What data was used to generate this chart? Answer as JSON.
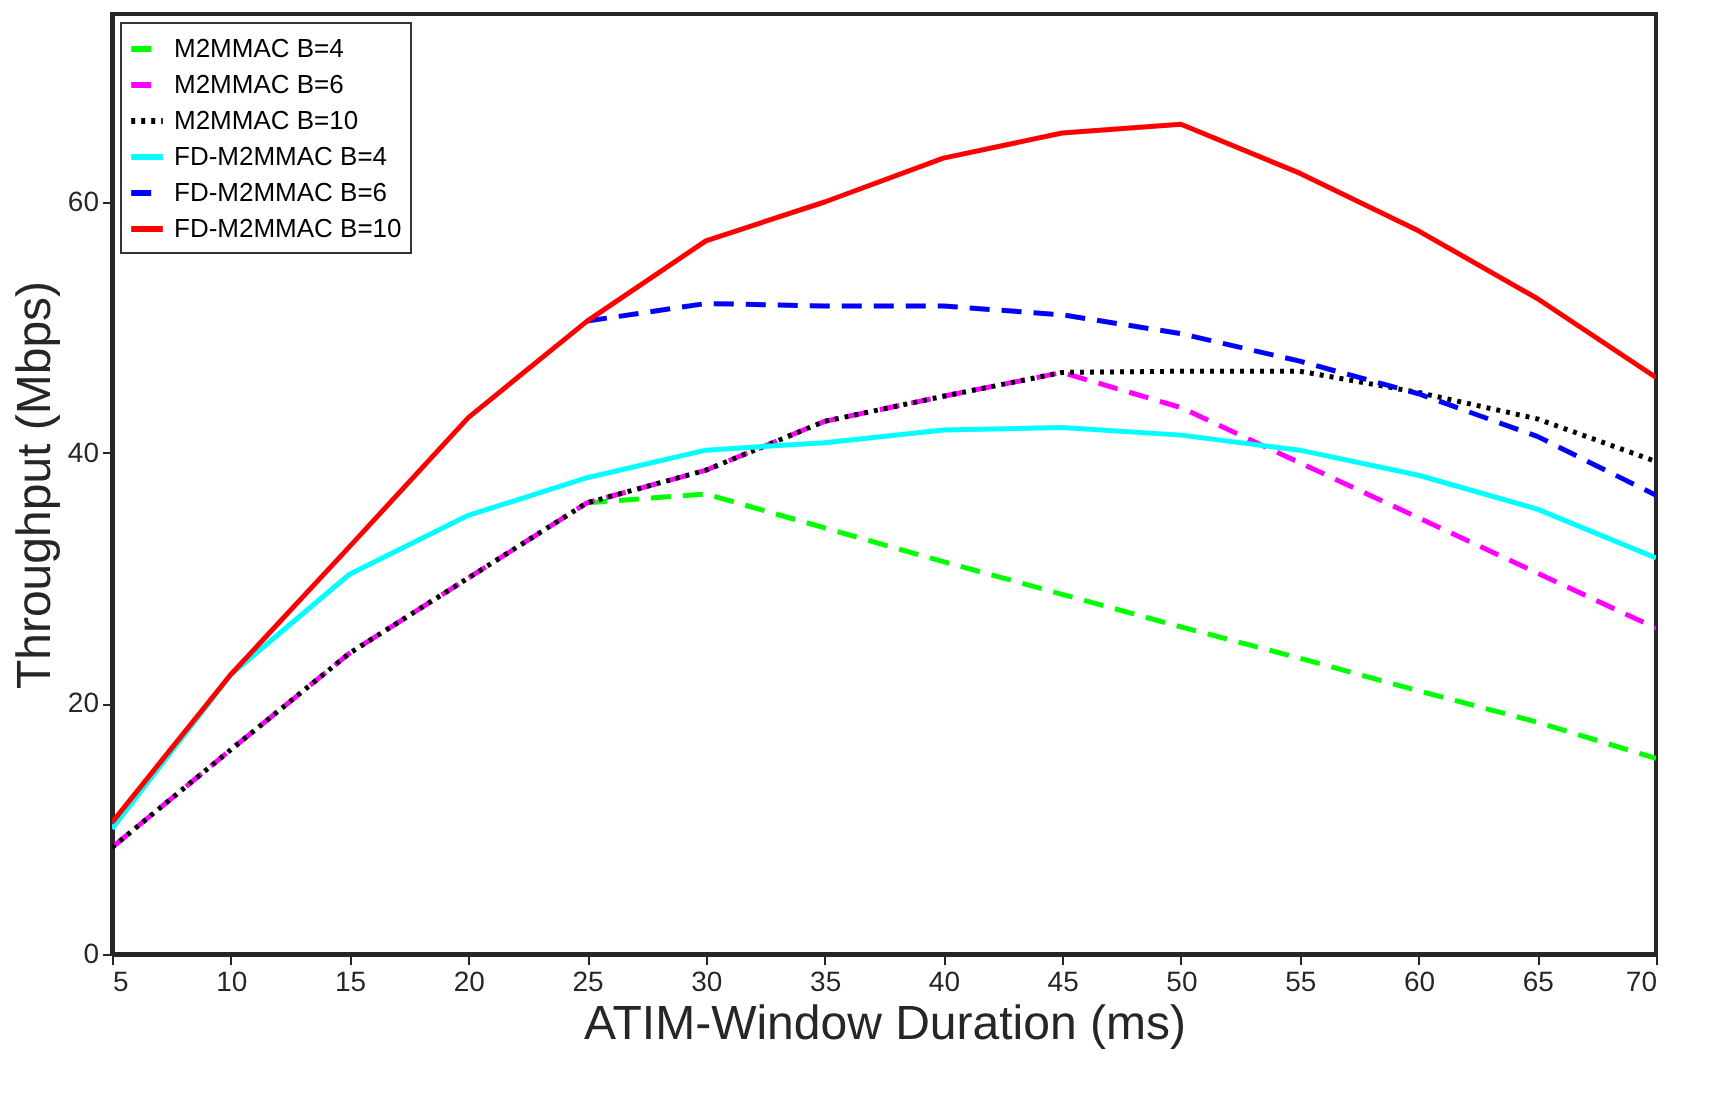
{
  "chart_data": {
    "type": "line",
    "xlabel": "ATIM-Window Duration (ms)",
    "ylabel": "Throughput (Mbps)",
    "x": [
      5,
      10,
      15,
      20,
      25,
      30,
      35,
      40,
      45,
      50,
      55,
      60,
      65,
      70
    ],
    "xlim": [
      5,
      70
    ],
    "xticks": [
      5,
      10,
      15,
      20,
      25,
      30,
      35,
      40,
      45,
      50,
      55,
      60,
      65,
      70
    ],
    "ylim": [
      0,
      75
    ],
    "yticks": [
      0,
      20,
      40,
      60
    ],
    "grid": false,
    "legend": "top left",
    "marker": "none",
    "series": [
      {
        "name": "M2MMAC B=4",
        "color": "#00ff00",
        "line_style": "dashed",
        "values": [
          null,
          null,
          null,
          null,
          36,
          36.7,
          34,
          31.3,
          28.7,
          26.1,
          23.6,
          21,
          18.5,
          15.6
        ]
      },
      {
        "name": "M2MMAC B=6",
        "color": "#ff00ff",
        "line_style": "dashed",
        "values": [
          8.5,
          16.3,
          24,
          30,
          36,
          38.6,
          42.5,
          44.5,
          46.4,
          43.6,
          39.2,
          34.8,
          30.4,
          26
        ]
      },
      {
        "name": "M2MMAC B=10",
        "color": "#000000",
        "line_style": "dotted",
        "values": [
          8.5,
          16.3,
          24,
          30,
          36,
          38.6,
          42.5,
          44.5,
          46.4,
          46.5,
          46.5,
          44.8,
          42.7,
          39.3
        ]
      },
      {
        "name": "FD-M2MMAC B=4",
        "color": "#00ffff",
        "line_style": "solid",
        "values": [
          10,
          22.3,
          30.3,
          35,
          38,
          40.2,
          40.8,
          41.8,
          42,
          41.4,
          40.2,
          38.2,
          35.5,
          31.6
        ]
      },
      {
        "name": "FD-M2MMAC B=6",
        "color": "#0000ff",
        "line_style": "dashed",
        "values": [
          null,
          null,
          null,
          null,
          50.5,
          51.9,
          51.7,
          51.7,
          51,
          49.5,
          47.3,
          44.7,
          41.3,
          36.6
        ]
      },
      {
        "name": "FD-M2MMAC B=10",
        "color": "#ff0000",
        "line_style": "solid",
        "values": [
          10.5,
          22.3,
          32.5,
          42.8,
          50.5,
          56.9,
          60,
          63.5,
          65.5,
          66.2,
          62.3,
          57.7,
          52.3,
          46
        ]
      }
    ]
  }
}
